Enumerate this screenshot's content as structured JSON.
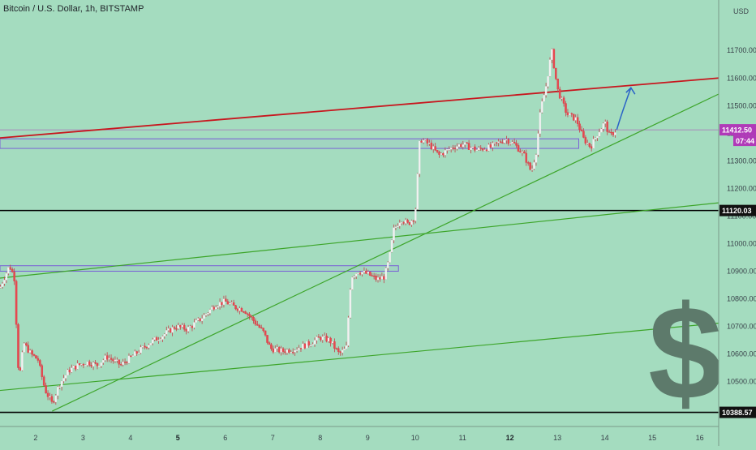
{
  "header": {
    "title": "Bitcoin / U.S. Dollar, 1h, BITSTAMP",
    "currency": "USD"
  },
  "price_badges": {
    "current_price": "11412.50",
    "countdown": "07:44",
    "current_color": "#b03ab8"
  },
  "colors": {
    "background": "#a4dcbf",
    "candle_up": "#f2f2f2",
    "candle_down": "#e8474f",
    "resistance": "#c8161e",
    "trendline": "#3da52a",
    "zone": "#7a5fd6",
    "arrow": "#2a63c7",
    "level": "#000000",
    "dollar": "#5d7a6b"
  },
  "watermark": {
    "symbol": "$"
  },
  "chart_data": {
    "type": "candlestick",
    "title": "Bitcoin / U.S. Dollar, 1h, BITSTAMP",
    "xlabel": "",
    "ylabel": "USD",
    "ylim": [
      10355,
      11830
    ],
    "xlim": [
      1.25,
      16.4
    ],
    "grid": false,
    "y_ticks": [
      10500,
      10600,
      10700,
      10800,
      10900,
      11000,
      11100,
      11200,
      11300,
      11400,
      11500,
      11600,
      11700
    ],
    "y_tick_labels": [
      "10500.00",
      "10600.00",
      "10700.00",
      "10800.00",
      "10900.00",
      "11000.00",
      "11100.00",
      "11200.00",
      "11300.00",
      "11400.00",
      "11500.00",
      "11600.00",
      "11700.00"
    ],
    "x_ticks": [
      2,
      3,
      4,
      5,
      6,
      7,
      8,
      9,
      10,
      11,
      12,
      13,
      14,
      15,
      16
    ],
    "x_tick_labels": [
      "2",
      "3",
      "4",
      "5",
      "6",
      "7",
      "8",
      "9",
      "10",
      "11",
      "12",
      "13",
      "14",
      "15",
      "16"
    ],
    "x_ticks_bold": [
      5,
      12
    ],
    "horizontal_levels": [
      {
        "value": 11120.03,
        "label": "11120.03"
      },
      {
        "value": 10388.57,
        "label": "10388.57"
      }
    ],
    "current_price": 11412.5,
    "price_path": [
      [
        1.25,
        10840
      ],
      [
        1.35,
        10880
      ],
      [
        1.45,
        10920
      ],
      [
        1.55,
        10880
      ],
      [
        1.65,
        10500
      ],
      [
        1.75,
        10640
      ],
      [
        1.9,
        10600
      ],
      [
        2.05,
        10580
      ],
      [
        2.2,
        10470
      ],
      [
        2.35,
        10420
      ],
      [
        2.5,
        10490
      ],
      [
        2.7,
        10540
      ],
      [
        2.9,
        10560
      ],
      [
        3.1,
        10570
      ],
      [
        3.3,
        10560
      ],
      [
        3.5,
        10590
      ],
      [
        3.8,
        10560
      ],
      [
        4.1,
        10600
      ],
      [
        4.4,
        10640
      ],
      [
        4.7,
        10670
      ],
      [
        4.95,
        10700
      ],
      [
        5.2,
        10690
      ],
      [
        5.5,
        10730
      ],
      [
        5.8,
        10780
      ],
      [
        6.0,
        10790
      ],
      [
        6.2,
        10770
      ],
      [
        6.4,
        10760
      ],
      [
        6.6,
        10720
      ],
      [
        6.8,
        10680
      ],
      [
        6.95,
        10620
      ],
      [
        7.2,
        10610
      ],
      [
        7.5,
        10620
      ],
      [
        7.8,
        10640
      ],
      [
        8.0,
        10660
      ],
      [
        8.2,
        10650
      ],
      [
        8.4,
        10600
      ],
      [
        8.55,
        10620
      ],
      [
        8.65,
        10880
      ],
      [
        8.8,
        10900
      ],
      [
        9.0,
        10890
      ],
      [
        9.2,
        10870
      ],
      [
        9.35,
        10880
      ],
      [
        9.45,
        10940
      ],
      [
        9.55,
        11050
      ],
      [
        9.7,
        11090
      ],
      [
        9.85,
        11070
      ],
      [
        10.0,
        11100
      ],
      [
        10.1,
        11380
      ],
      [
        10.3,
        11360
      ],
      [
        10.5,
        11320
      ],
      [
        10.8,
        11350
      ],
      [
        11.0,
        11360
      ],
      [
        11.3,
        11340
      ],
      [
        11.6,
        11350
      ],
      [
        11.9,
        11380
      ],
      [
        12.1,
        11360
      ],
      [
        12.3,
        11320
      ],
      [
        12.45,
        11260
      ],
      [
        12.55,
        11330
      ],
      [
        12.65,
        11490
      ],
      [
        12.75,
        11560
      ],
      [
        12.88,
        11700
      ],
      [
        13.0,
        11560
      ],
      [
        13.2,
        11470
      ],
      [
        13.4,
        11450
      ],
      [
        13.55,
        11380
      ],
      [
        13.7,
        11350
      ],
      [
        13.85,
        11400
      ],
      [
        14.0,
        11440
      ],
      [
        14.1,
        11390
      ],
      [
        14.25,
        11412.5
      ]
    ],
    "lines": [
      {
        "name": "",
        "kind": "resistance",
        "from": [
          1.25,
          11383
        ],
        "to": [
          16.4,
          11600
        ]
      },
      {
        "name": "",
        "kind": "trend",
        "from": [
          2.35,
          10393
        ],
        "to": [
          16.4,
          11542
        ]
      },
      {
        "name": "",
        "kind": "trend",
        "from": [
          1.25,
          10875
        ],
        "to": [
          16.4,
          11148
        ]
      },
      {
        "name": "",
        "kind": "trend",
        "from": [
          1.25,
          10468
        ],
        "to": [
          16.4,
          10712
        ]
      }
    ],
    "zones": [
      {
        "x0": 1.25,
        "x1": 9.65,
        "y0": 10900,
        "y1": 10920
      },
      {
        "x0": 1.25,
        "x1": 13.45,
        "y0": 11345,
        "y1": 11380
      }
    ],
    "forecast_arrow": {
      "from": [
        14.25,
        11412.5
      ],
      "to": [
        14.55,
        11565
      ]
    }
  }
}
